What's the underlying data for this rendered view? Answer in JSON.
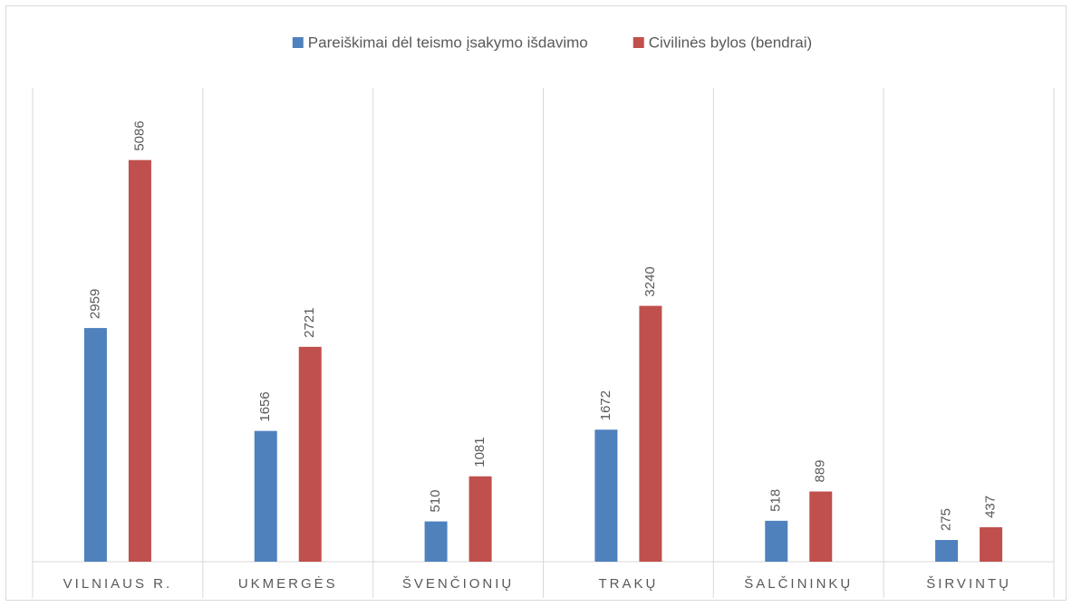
{
  "chart_data": {
    "type": "bar",
    "categories": [
      "VILNIAUS R.",
      "UKMERGĖS",
      "ŠVENČIONIŲ",
      "TRAKŲ",
      "ŠALČININKŲ",
      "ŠIRVINTŲ"
    ],
    "series": [
      {
        "name": "Pareiškimai dėl teismo įsakymo išdavimo",
        "color": "#4f81bd",
        "values": [
          2959,
          1656,
          510,
          1672,
          518,
          275
        ]
      },
      {
        "name": "Civilinės bylos (bendrai)",
        "color": "#c0504d",
        "values": [
          5086,
          2721,
          1081,
          3240,
          889,
          437
        ]
      }
    ],
    "ylim": [
      0,
      6000
    ],
    "legend": "top"
  }
}
